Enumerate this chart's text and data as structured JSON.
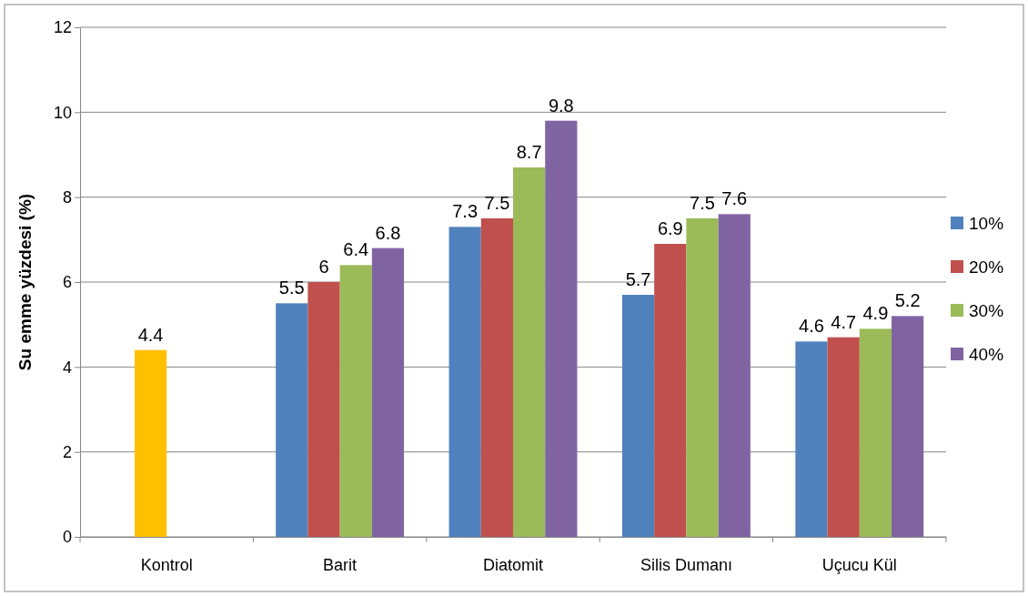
{
  "chart_data": {
    "type": "bar",
    "ylabel": "Su emme yüzdesi (%)",
    "categories": [
      "Kontrol",
      "Barit",
      "Diatomit",
      "Silis Dumanı",
      "Uçucu Kül"
    ],
    "series": [
      {
        "name": "10%",
        "color": "#4f81bd",
        "values": [
          null,
          5.5,
          7.3,
          5.7,
          4.6
        ]
      },
      {
        "name": "20%",
        "color": "#c0504d",
        "colors": [
          "#ffc000",
          "#c0504d",
          "#c0504d",
          "#c0504d",
          "#c0504d"
        ],
        "values": [
          4.4,
          6,
          7.5,
          6.9,
          4.7
        ]
      },
      {
        "name": "30%",
        "color": "#9bbb59",
        "values": [
          null,
          6.4,
          8.7,
          7.5,
          4.9
        ]
      },
      {
        "name": "40%",
        "color": "#8064a2",
        "values": [
          null,
          6.8,
          9.8,
          7.6,
          5.2
        ]
      }
    ],
    "ylim": [
      0,
      12
    ],
    "yticks": [
      0,
      2,
      4,
      6,
      8,
      10,
      12
    ],
    "grid": "y",
    "legend": "right",
    "data_labels": true
  }
}
